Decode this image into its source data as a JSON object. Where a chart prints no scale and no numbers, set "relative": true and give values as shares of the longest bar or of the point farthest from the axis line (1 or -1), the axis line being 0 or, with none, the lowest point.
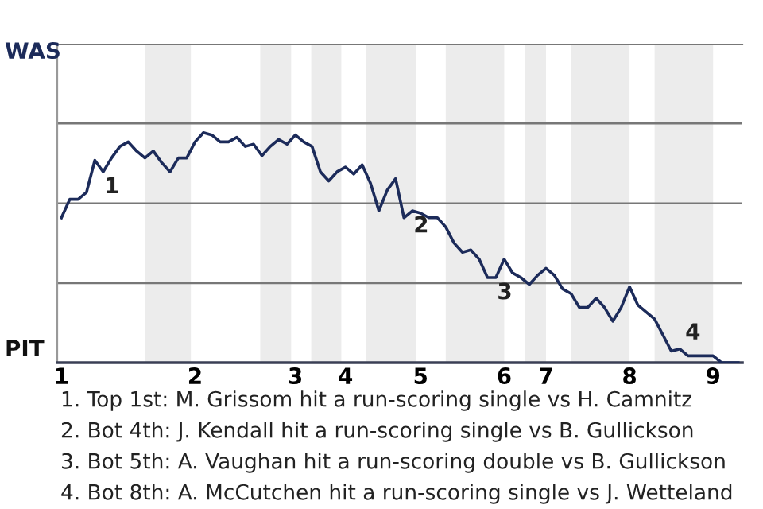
{
  "chart_data": {
    "type": "line",
    "relative": true,
    "categories": [
      "1",
      null,
      null,
      null,
      null,
      null,
      null,
      null,
      null,
      null,
      null,
      null,
      null,
      null,
      null,
      null,
      "2",
      null,
      null,
      null,
      null,
      null,
      null,
      null,
      null,
      null,
      null,
      null,
      "3",
      null,
      null,
      null,
      null,
      null,
      "4",
      null,
      null,
      null,
      null,
      null,
      null,
      null,
      null,
      "5",
      null,
      null,
      null,
      null,
      null,
      null,
      null,
      null,
      null,
      "6",
      null,
      null,
      null,
      null,
      "7",
      null,
      null,
      null,
      null,
      null,
      null,
      null,
      null,
      null,
      "8",
      null,
      null,
      null,
      null,
      null,
      null,
      null,
      null,
      null,
      "9",
      null,
      null,
      null
    ],
    "marker": "none",
    "line_style": "solid",
    "series": [
      {
        "color": "#1c2b5a",
        "values": [
          0.63,
          0.71,
          0.71,
          0.74,
          0.88,
          0.83,
          0.89,
          0.94,
          0.96,
          0.92,
          0.89,
          0.92,
          0.87,
          0.83,
          0.89,
          0.89,
          0.96,
          1,
          0.99,
          0.96,
          0.96,
          0.98,
          0.94,
          0.95,
          0.9,
          0.94,
          0.97,
          0.95,
          0.99,
          0.96,
          0.94,
          0.83,
          0.79,
          0.83,
          0.85,
          0.82,
          0.86,
          0.78,
          0.66,
          0.75,
          0.8,
          0.63,
          0.66,
          0.65,
          0.63,
          0.63,
          0.59,
          0.52,
          0.48,
          0.49,
          0.45,
          0.37,
          0.37,
          0.45,
          0.39,
          0.37,
          0.34,
          0.38,
          0.41,
          0.38,
          0.32,
          0.3,
          0.24,
          0.24,
          0.28,
          0.24,
          0.18,
          0.24,
          0.33,
          0.25,
          0.22,
          0.19,
          0.12,
          0.05,
          0.06,
          0.03,
          0.03,
          0.03,
          0.03,
          0,
          0,
          0
        ]
      }
    ],
    "ref_lines": [
      {
        "axis": "y",
        "value": 0.346,
        "color": "#777777"
      },
      {
        "axis": "y",
        "value": 0.692,
        "color": "#777777"
      },
      {
        "axis": "y",
        "value": 1.04,
        "color": "#777777"
      }
    ],
    "annotations": [
      "WAS",
      "PIT",
      "1",
      "2",
      "3",
      "4",
      "1. Top 1st: M. Grissom hit a run-scoring single vs H. Camnitz",
      "2. Bot 4th: J. Kendall hit a run-scoring single vs B. Gullickson",
      "3. Bot 5th: A. Vaughan hit a run-scoring double vs B. Gullickson",
      "4. Bot 8th: A. McCutchen hit a run-scoring single vs J. Wetteland"
    ]
  }
}
